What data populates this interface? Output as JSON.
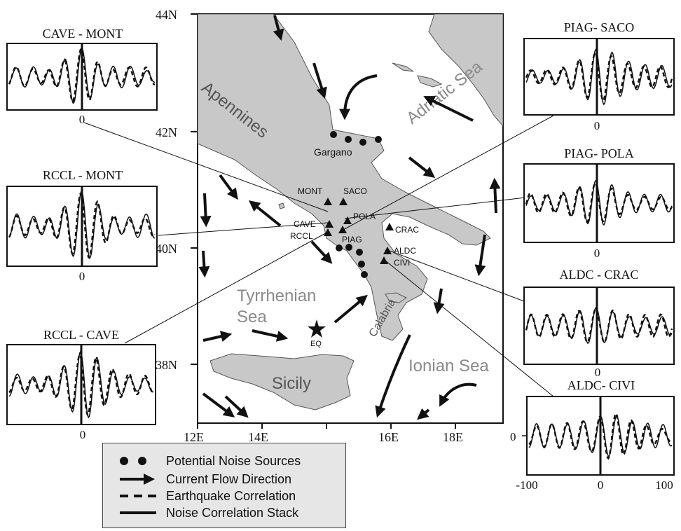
{
  "map": {
    "lat_labels": [
      "44N",
      "42N",
      "40N",
      "38N"
    ],
    "lon_labels": [
      "12E",
      "14E",
      "16E",
      "18E"
    ],
    "regions": {
      "apennines": "Apennines",
      "adriatic": "Adriatic Sea",
      "tyrrhenian_line1": "Tyrrhenian",
      "tyrrhenian_line2": "Sea",
      "sicily": "Sicily",
      "ionian": "Ionian Sea",
      "calabria": "Calabria",
      "gargano": "Gargano"
    },
    "stations": [
      "MONT",
      "SACO",
      "POLA",
      "CAVE",
      "RCCL",
      "PIAG",
      "CRAC",
      "ALDC",
      "CIVI"
    ],
    "epicenter_label": "EQ"
  },
  "panels": [
    {
      "title": "CAVE - MONT",
      "zero": "0"
    },
    {
      "title": "RCCL - MONT",
      "zero": "0"
    },
    {
      "title": "RCCL - CAVE",
      "zero": "0"
    },
    {
      "title": "PIAG- SACO",
      "zero": "0"
    },
    {
      "title": "PIAG- POLA",
      "zero": "0"
    },
    {
      "title": "ALDC - CRAC",
      "zero": "0"
    },
    {
      "title": "ALDC- CIVI",
      "zero": "0",
      "xticks": [
        "-100",
        "0",
        "100"
      ],
      "yzero": "0"
    }
  ],
  "legend": {
    "sources": "Potential Noise Sources",
    "current": "Current Flow Direction",
    "eq_corr": "Earthquake Correlation",
    "noise_corr": "Noise Correlation Stack"
  },
  "colors": {
    "land": "#c8c8c8",
    "text_gray": "#8a8a8a",
    "ink": "#111111"
  }
}
